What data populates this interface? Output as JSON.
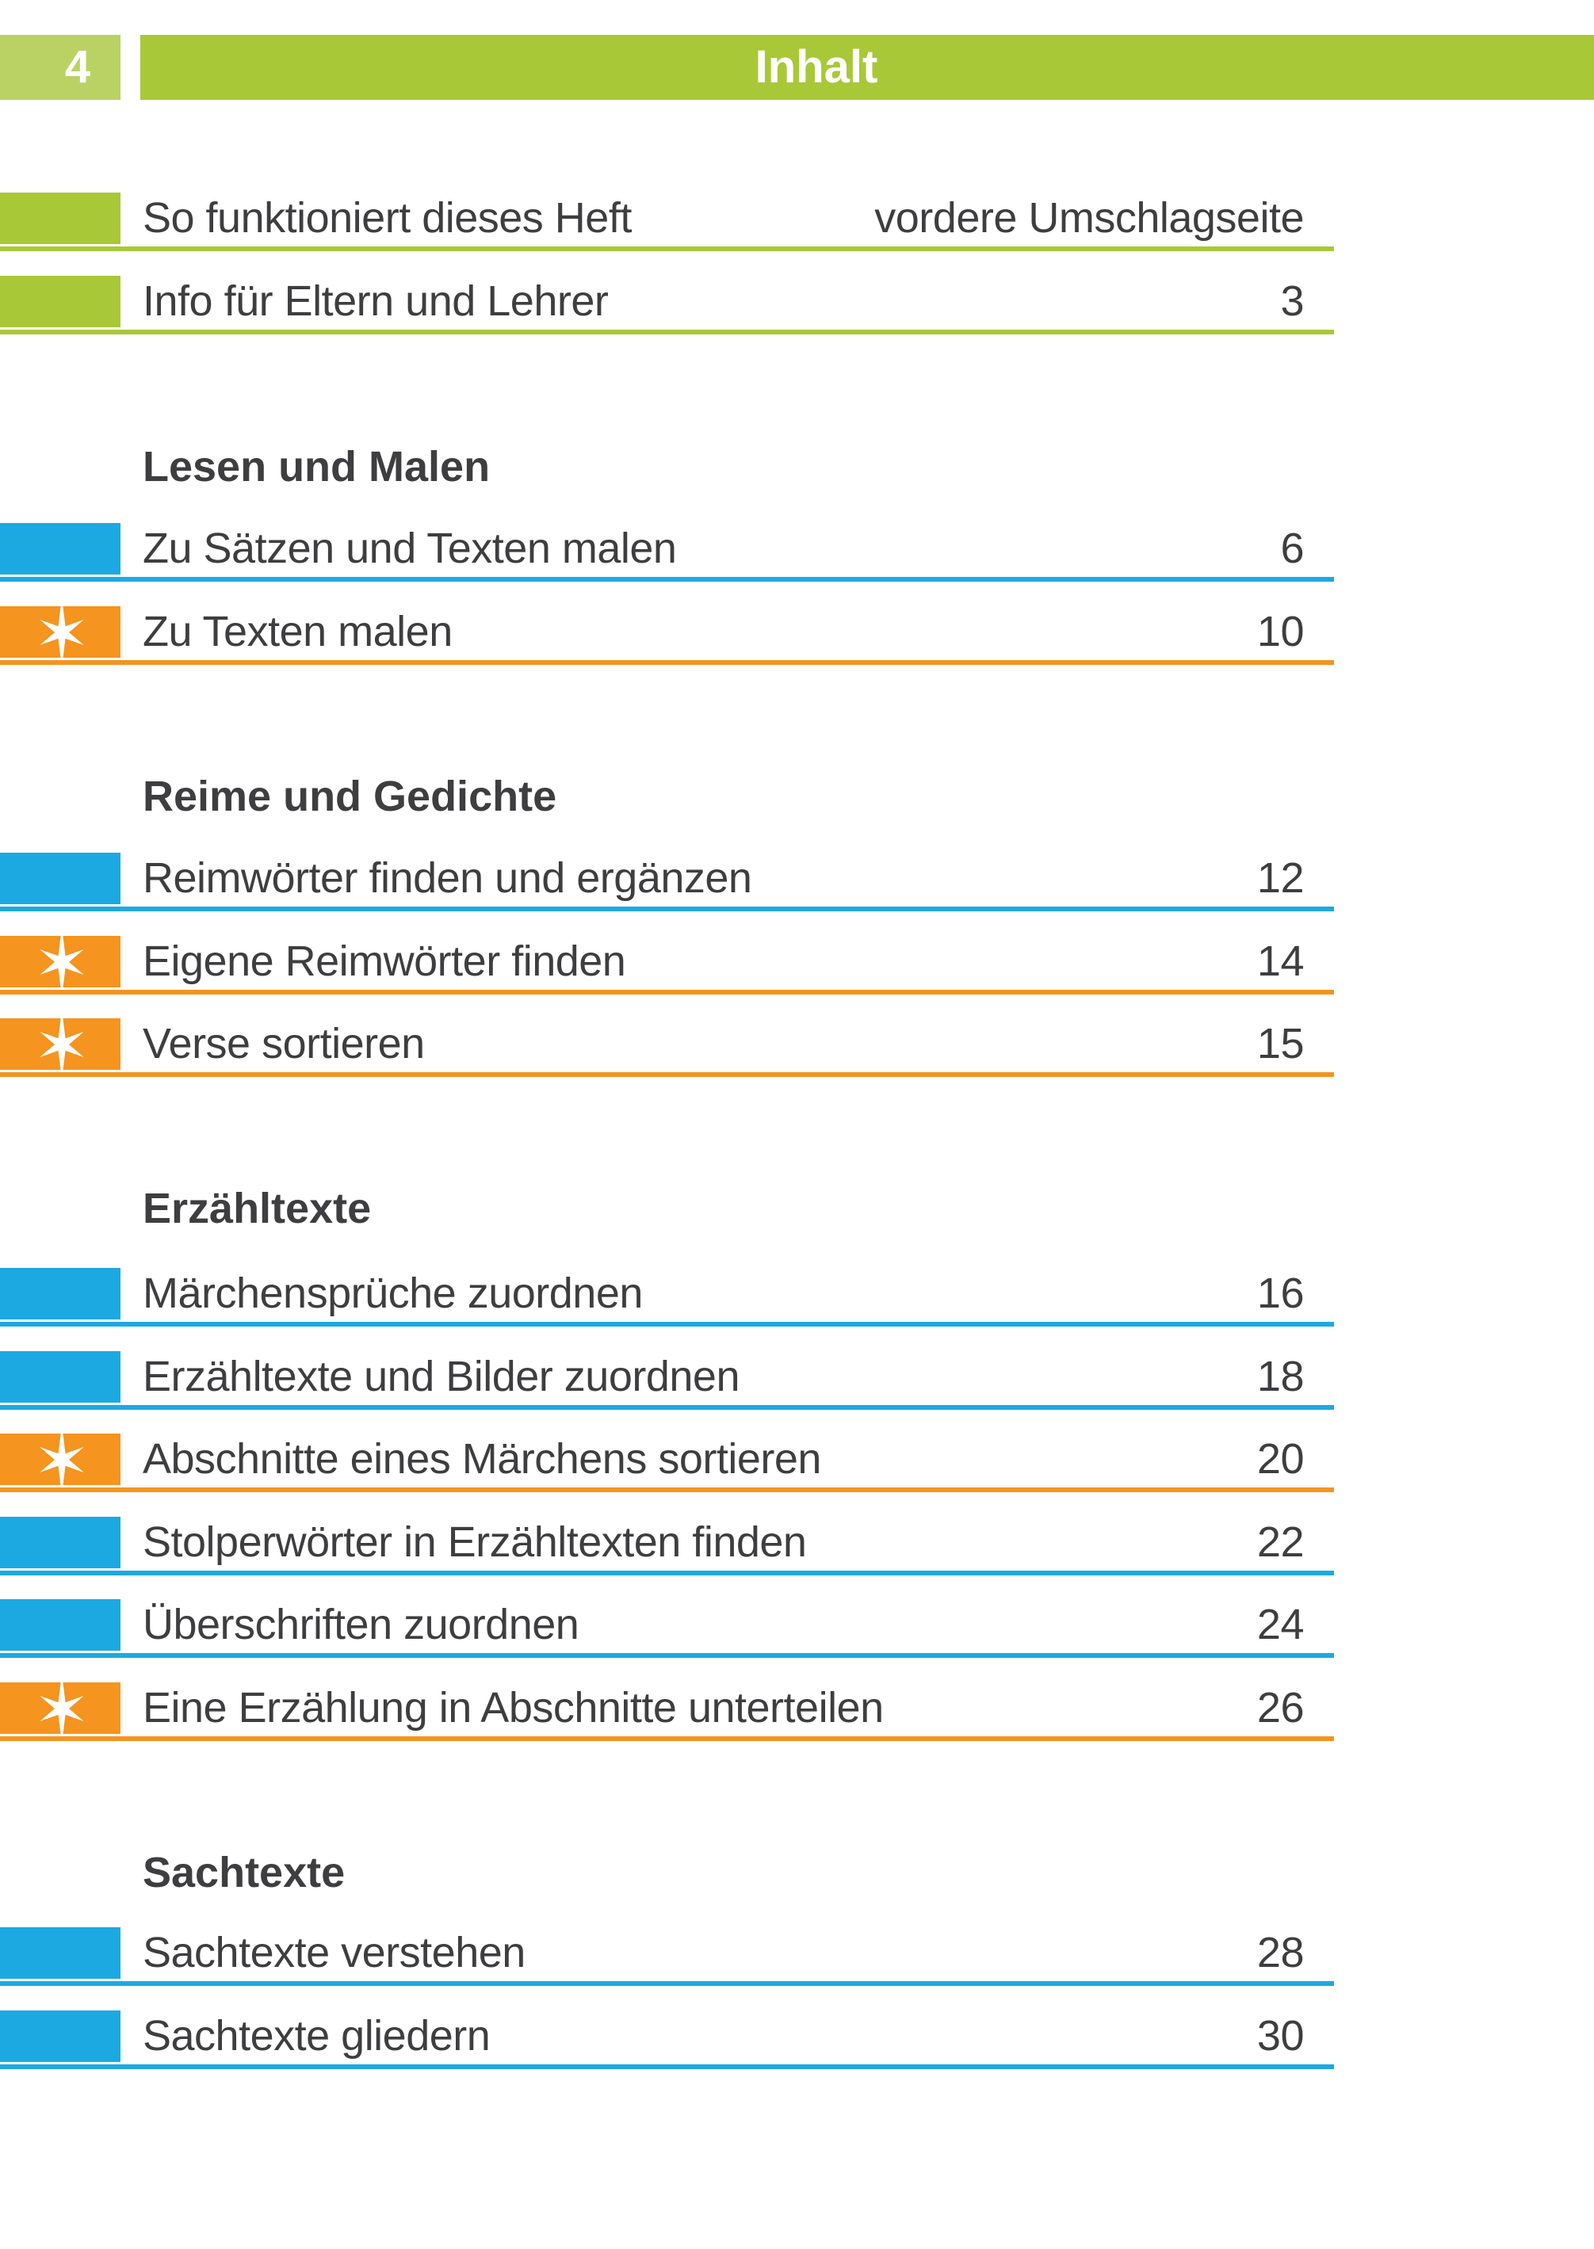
{
  "page": {
    "page_number": "4",
    "header_title": "Inhalt"
  },
  "colors": {
    "header_green": "#a9c838",
    "pagenum_green_light": "#b9d263",
    "marker_blue": "#1ca9e2",
    "marker_orange": "#f5941f",
    "text_gray": "#3e3e40",
    "star_white": "#ffffff"
  },
  "toc": {
    "intro_entries": [
      {
        "label": "So funktioniert dieses Heft",
        "page": "vordere Umschlagseite",
        "marker": "green"
      },
      {
        "label": "Info für Eltern und Lehrer",
        "page": "3",
        "marker": "green"
      }
    ],
    "sections": [
      {
        "title": "Lesen und Malen",
        "entries": [
          {
            "label": "Zu Sätzen und Texten malen",
            "page": "6",
            "marker": "blue"
          },
          {
            "label": "Zu Texten malen",
            "page": "10",
            "marker": "orange-star"
          }
        ]
      },
      {
        "title": "Reime und Gedichte",
        "entries": [
          {
            "label": "Reimwörter finden und ergänzen",
            "page": "12",
            "marker": "blue"
          },
          {
            "label": "Eigene Reimwörter finden",
            "page": "14",
            "marker": "orange-star"
          },
          {
            "label": "Verse sortieren",
            "page": "15",
            "marker": "orange-star"
          }
        ]
      },
      {
        "title": "Erzähltexte",
        "entries": [
          {
            "label": "Märchensprüche zuordnen",
            "page": "16",
            "marker": "blue"
          },
          {
            "label": "Erzähltexte und Bilder zuordnen",
            "page": "18",
            "marker": "blue"
          },
          {
            "label": "Abschnitte eines Märchens sortieren",
            "page": "20",
            "marker": "orange-star"
          },
          {
            "label": "Stolperwörter in Erzähltexten finden",
            "page": "22",
            "marker": "blue"
          },
          {
            "label": "Überschriften zuordnen",
            "page": "24",
            "marker": "blue"
          },
          {
            "label": "Eine Erzählung in Abschnitte unterteilen",
            "page": "26",
            "marker": "orange-star"
          }
        ]
      },
      {
        "title": "Sachtexte",
        "entries": [
          {
            "label": "Sachtexte verstehen",
            "page": "28",
            "marker": "blue"
          },
          {
            "label": "Sachtexte gliedern",
            "page": "30",
            "marker": "blue"
          }
        ]
      }
    ]
  }
}
